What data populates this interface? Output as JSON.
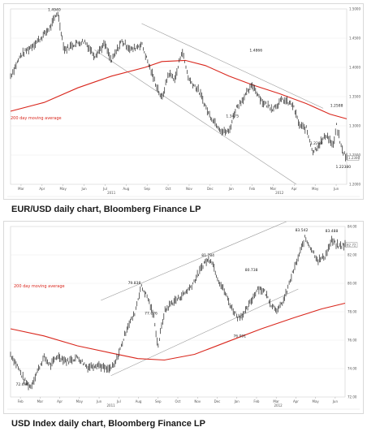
{
  "colors": {
    "ma": "#d9261c",
    "price": "#222222",
    "channel": "#999999",
    "grid": "#e6e6e6"
  },
  "chart_data": [
    {
      "type": "line",
      "caption": "EUR/USD daily chart, Bloomberg Finance LP",
      "ma_label": "200 day moving average",
      "ylim": [
        1.2,
        1.5
      ],
      "y_ticks": [
        "1.5000",
        "1.4500",
        "1.4000",
        "1.3500",
        "1.3000",
        "1.2500",
        "1.2000"
      ],
      "x_ticks": [
        "Mar",
        "Apr",
        "May",
        "Jun",
        "Jul",
        "Aug",
        "Sep",
        "Oct",
        "Nov",
        "Dec",
        "Jan",
        "Feb",
        "Mar",
        "Apr",
        "May",
        "Jun"
      ],
      "year_labels": [
        "2011",
        "2012"
      ],
      "current_label": "1.2300",
      "annotations": [
        {
          "text": "1.4940",
          "x": 0.13,
          "y": 1.494
        },
        {
          "text": "1.4866",
          "x": 0.73,
          "y": 1.424
        },
        {
          "text": "1.3475",
          "x": 0.66,
          "y": 1.312
        },
        {
          "text": "1.2588",
          "x": 0.97,
          "y": 1.33
        },
        {
          "text": "1.2288",
          "x": 0.91,
          "y": 1.265
        },
        {
          "text": "1.22380",
          "x": 0.99,
          "y": 1.225
        }
      ],
      "price_path": [
        [
          0,
          1.385
        ],
        [
          0.03,
          1.42
        ],
        [
          0.06,
          1.435
        ],
        [
          0.09,
          1.45
        ],
        [
          0.12,
          1.47
        ],
        [
          0.14,
          1.495
        ],
        [
          0.16,
          1.43
        ],
        [
          0.19,
          1.44
        ],
        [
          0.22,
          1.445
        ],
        [
          0.25,
          1.42
        ],
        [
          0.28,
          1.44
        ],
        [
          0.3,
          1.41
        ],
        [
          0.33,
          1.445
        ],
        [
          0.36,
          1.43
        ],
        [
          0.39,
          1.44
        ],
        [
          0.42,
          1.39
        ],
        [
          0.45,
          1.345
        ],
        [
          0.47,
          1.39
        ],
        [
          0.49,
          1.38
        ],
        [
          0.51,
          1.43
        ],
        [
          0.53,
          1.38
        ],
        [
          0.56,
          1.36
        ],
        [
          0.59,
          1.32
        ],
        [
          0.61,
          1.305
        ],
        [
          0.63,
          1.29
        ],
        [
          0.65,
          1.29
        ],
        [
          0.67,
          1.33
        ],
        [
          0.69,
          1.345
        ],
        [
          0.72,
          1.37
        ],
        [
          0.75,
          1.34
        ],
        [
          0.78,
          1.33
        ],
        [
          0.81,
          1.345
        ],
        [
          0.84,
          1.335
        ],
        [
          0.86,
          1.3
        ],
        [
          0.88,
          1.295
        ],
        [
          0.9,
          1.255
        ],
        [
          0.92,
          1.27
        ],
        [
          0.94,
          1.285
        ],
        [
          0.96,
          1.265
        ],
        [
          0.97,
          1.3
        ],
        [
          0.985,
          1.26
        ],
        [
          1,
          1.245
        ]
      ],
      "ma_path": [
        [
          0,
          1.325
        ],
        [
          0.1,
          1.34
        ],
        [
          0.2,
          1.365
        ],
        [
          0.3,
          1.385
        ],
        [
          0.4,
          1.4
        ],
        [
          0.45,
          1.41
        ],
        [
          0.52,
          1.412
        ],
        [
          0.58,
          1.403
        ],
        [
          0.65,
          1.385
        ],
        [
          0.72,
          1.37
        ],
        [
          0.8,
          1.355
        ],
        [
          0.88,
          1.338
        ],
        [
          0.95,
          1.32
        ],
        [
          1,
          1.312
        ]
      ],
      "channel_lines": [
        [
          [
            0.25,
            1.43
          ],
          [
            0.85,
            1.2
          ]
        ],
        [
          [
            0.39,
            1.475
          ],
          [
            0.93,
            1.33
          ]
        ]
      ]
    },
    {
      "type": "line",
      "caption": "USD Index daily chart, Bloomberg Finance LP",
      "ma_label": "200 day moving average",
      "ylim": [
        72,
        84
      ],
      "y_ticks": [
        "84.00",
        "82.00",
        "80.00",
        "78.00",
        "76.00",
        "74.00",
        "72.00"
      ],
      "x_ticks": [
        "Feb",
        "Mar",
        "Apr",
        "May",
        "Jun",
        "Jul",
        "Aug",
        "Sep",
        "Oct",
        "Nov",
        "Dec",
        "Jan",
        "Feb",
        "Mar",
        "Apr",
        "May",
        "Jun"
      ],
      "year_labels": [
        "2011",
        "2012"
      ],
      "current_label": "82.72",
      "annotations": [
        {
          "text": "72.696",
          "x": 0.035,
          "y": 72.69
        },
        {
          "text": "79.838",
          "x": 0.37,
          "y": 79.84
        },
        {
          "text": "77.676",
          "x": 0.42,
          "y": 77.68
        },
        {
          "text": "81.784",
          "x": 0.59,
          "y": 81.78
        },
        {
          "text": "76.091",
          "x": 0.685,
          "y": 76.09
        },
        {
          "text": "80.738",
          "x": 0.72,
          "y": 80.74
        },
        {
          "text": "83.542",
          "x": 0.87,
          "y": 83.54
        },
        {
          "text": "83.488",
          "x": 0.96,
          "y": 83.49
        }
      ],
      "price_path": [
        [
          0,
          75.0
        ],
        [
          0.02,
          74.2
        ],
        [
          0.04,
          73.2
        ],
        [
          0.06,
          72.7
        ],
        [
          0.08,
          73.8
        ],
        [
          0.1,
          74.8
        ],
        [
          0.12,
          74.2
        ],
        [
          0.14,
          74.9
        ],
        [
          0.17,
          74.5
        ],
        [
          0.2,
          74.8
        ],
        [
          0.23,
          74.1
        ],
        [
          0.26,
          74.3
        ],
        [
          0.29,
          73.9
        ],
        [
          0.31,
          74.2
        ],
        [
          0.33,
          75.5
        ],
        [
          0.35,
          77.0
        ],
        [
          0.37,
          77.8
        ],
        [
          0.39,
          79.8
        ],
        [
          0.41,
          79.0
        ],
        [
          0.43,
          77.5
        ],
        [
          0.44,
          75.5
        ],
        [
          0.46,
          78.0
        ],
        [
          0.48,
          78.6
        ],
        [
          0.5,
          78.9
        ],
        [
          0.52,
          79.3
        ],
        [
          0.54,
          79.8
        ],
        [
          0.56,
          80.6
        ],
        [
          0.58,
          81.5
        ],
        [
          0.6,
          81.7
        ],
        [
          0.62,
          80.3
        ],
        [
          0.64,
          79.4
        ],
        [
          0.66,
          78.3
        ],
        [
          0.68,
          77.6
        ],
        [
          0.7,
          77.9
        ],
        [
          0.72,
          78.8
        ],
        [
          0.74,
          79.7
        ],
        [
          0.76,
          79.4
        ],
        [
          0.78,
          78.5
        ],
        [
          0.8,
          78.1
        ],
        [
          0.82,
          79.0
        ],
        [
          0.84,
          80.5
        ],
        [
          0.86,
          81.8
        ],
        [
          0.88,
          83.2
        ],
        [
          0.9,
          82.4
        ],
        [
          0.92,
          81.6
        ],
        [
          0.94,
          81.9
        ],
        [
          0.96,
          83.0
        ],
        [
          0.98,
          82.6
        ],
        [
          1,
          82.7
        ]
      ],
      "ma_path": [
        [
          0,
          76.8
        ],
        [
          0.1,
          76.3
        ],
        [
          0.2,
          75.6
        ],
        [
          0.3,
          75.1
        ],
        [
          0.38,
          74.7
        ],
        [
          0.46,
          74.6
        ],
        [
          0.55,
          75.0
        ],
        [
          0.65,
          75.9
        ],
        [
          0.75,
          76.8
        ],
        [
          0.85,
          77.6
        ],
        [
          0.93,
          78.2
        ],
        [
          1,
          78.6
        ]
      ],
      "channel_lines": [
        [
          [
            0.3,
            73.5
          ],
          [
            0.86,
            79.6
          ]
        ],
        [
          [
            0.27,
            78.8
          ],
          [
            0.85,
            84.6
          ]
        ]
      ]
    }
  ]
}
